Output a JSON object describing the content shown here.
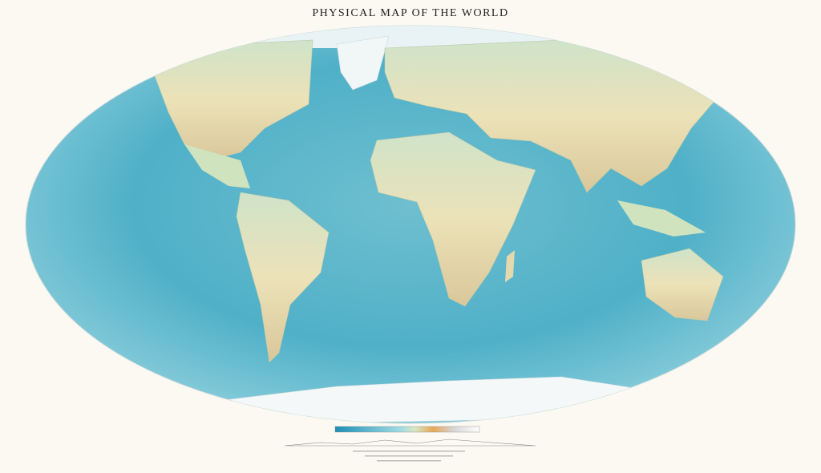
{
  "header": {
    "title": "PHYSICAL MAP OF THE WORLD"
  }
}
